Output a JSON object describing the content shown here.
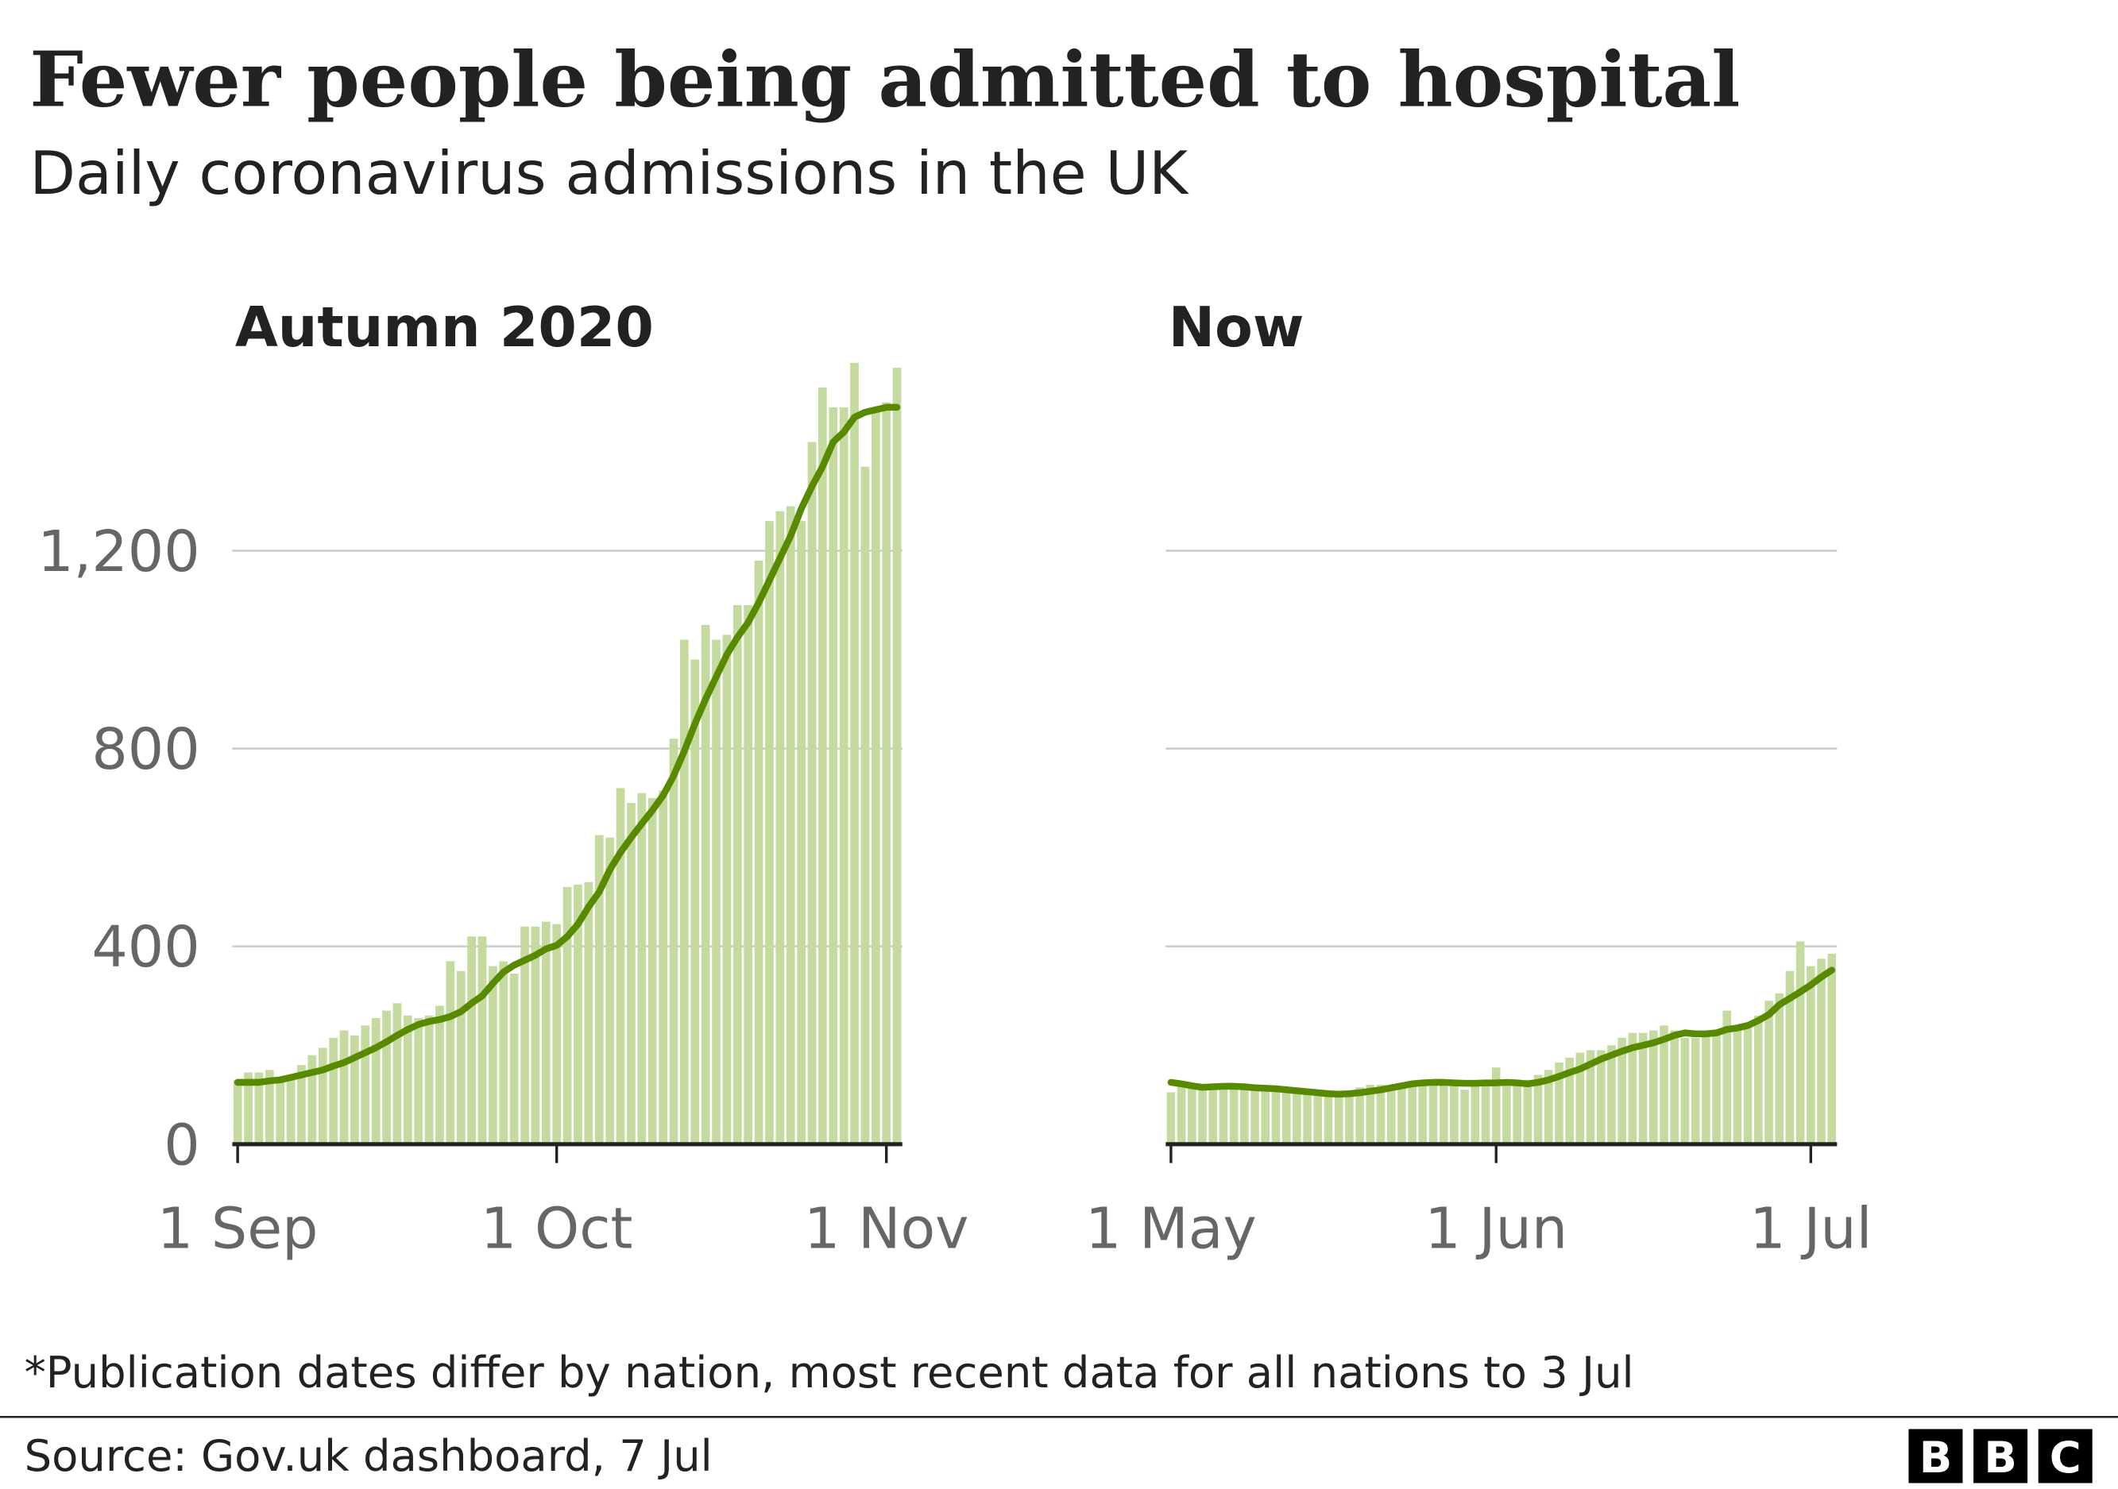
{
  "title": "Fewer people being admitted to hospital",
  "subtitle": "Daily coronavirus admissions in the UK",
  "footnote": "*Publication dates differ by nation, most recent data for all nations to 3 Jul",
  "source": "Source: Gov.uk dashboard, 7 Jul",
  "logo": [
    "B",
    "B",
    "C"
  ],
  "chart_data": [
    {
      "type": "bar",
      "title": "Autumn 2020",
      "categories": [
        "1 Sep",
        null,
        null,
        null,
        null,
        null,
        null,
        null,
        null,
        null,
        null,
        null,
        null,
        null,
        null,
        null,
        null,
        null,
        null,
        null,
        null,
        null,
        null,
        null,
        null,
        null,
        null,
        null,
        null,
        null,
        "1 Oct",
        null,
        null,
        null,
        null,
        null,
        null,
        null,
        null,
        null,
        null,
        null,
        null,
        null,
        null,
        null,
        null,
        null,
        null,
        null,
        null,
        null,
        null,
        null,
        null,
        null,
        null,
        null,
        null,
        null,
        null,
        "1 Nov",
        null
      ],
      "ylim": [
        0,
        1600
      ],
      "yticks": [
        0,
        400,
        800,
        {
          "value": 1200,
          "label": "1,200"
        }
      ],
      "tick_labels": true,
      "grid": true,
      "series": [
        {
          "type": "bar",
          "color": "#c4da9e",
          "values": [
            130,
            145,
            145,
            150,
            130,
            140,
            160,
            180,
            195,
            215,
            230,
            220,
            240,
            255,
            270,
            285,
            260,
            255,
            260,
            280,
            370,
            350,
            420,
            420,
            360,
            370,
            345,
            440,
            440,
            450,
            445,
            520,
            525,
            530,
            625,
            620,
            720,
            690,
            710,
            700,
            715,
            820,
            1020,
            980,
            1050,
            1020,
            1030,
            1090,
            1090,
            1180,
            1260,
            1280,
            1290,
            1260,
            1420,
            1530,
            1490,
            1490,
            1580,
            1370,
            1480,
            1500,
            1570
          ]
        },
        {
          "type": "line",
          "color": "#588a00",
          "values": [
            125,
            125,
            125,
            128,
            130,
            135,
            140,
            145,
            150,
            158,
            165,
            175,
            185,
            195,
            207,
            220,
            232,
            242,
            248,
            252,
            258,
            268,
            285,
            300,
            325,
            348,
            362,
            372,
            382,
            395,
            402,
            420,
            445,
            480,
            510,
            555,
            590,
            620,
            648,
            675,
            705,
            745,
            795,
            850,
            900,
            945,
            990,
            1025,
            1055,
            1095,
            1140,
            1185,
            1230,
            1285,
            1330,
            1370,
            1420,
            1440,
            1470,
            1480,
            1485,
            1490,
            1490
          ]
        }
      ]
    },
    {
      "type": "bar",
      "title": "Now",
      "categories": [
        "1 May",
        null,
        null,
        null,
        null,
        null,
        null,
        null,
        null,
        null,
        null,
        null,
        null,
        null,
        null,
        null,
        null,
        null,
        null,
        null,
        null,
        null,
        null,
        null,
        null,
        null,
        null,
        null,
        null,
        null,
        null,
        "1 Jun",
        null,
        null,
        null,
        null,
        null,
        null,
        null,
        null,
        null,
        null,
        null,
        null,
        null,
        null,
        null,
        null,
        null,
        null,
        null,
        null,
        null,
        null,
        null,
        null,
        null,
        null,
        null,
        null,
        null,
        "1 Jul",
        null,
        null
      ],
      "ylim": [
        0,
        1600
      ],
      "yticks": [
        0,
        400,
        800,
        1200
      ],
      "tick_labels": false,
      "grid": true,
      "series": [
        {
          "type": "bar",
          "color": "#c4da9e",
          "values": [
            105,
            125,
            120,
            110,
            115,
            120,
            118,
            120,
            115,
            110,
            115,
            112,
            110,
            108,
            105,
            100,
            95,
            105,
            115,
            120,
            120,
            115,
            120,
            125,
            130,
            128,
            125,
            130,
            110,
            125,
            120,
            155,
            130,
            130,
            130,
            140,
            150,
            165,
            175,
            185,
            190,
            190,
            200,
            215,
            225,
            225,
            230,
            240,
            230,
            215,
            215,
            225,
            225,
            270,
            235,
            240,
            260,
            290,
            305,
            350,
            410,
            360,
            375,
            385
          ]
        },
        {
          "type": "line",
          "color": "#588a00",
          "values": [
            125,
            122,
            118,
            115,
            116,
            117,
            117,
            116,
            114,
            113,
            112,
            110,
            108,
            106,
            104,
            102,
            101,
            102,
            104,
            107,
            110,
            114,
            118,
            122,
            124,
            125,
            125,
            124,
            123,
            123,
            124,
            124,
            125,
            124,
            122,
            125,
            130,
            137,
            145,
            152,
            162,
            172,
            180,
            188,
            195,
            200,
            205,
            212,
            220,
            225,
            223,
            223,
            225,
            232,
            235,
            240,
            250,
            262,
            282,
            295,
            308,
            322,
            338,
            352
          ]
        }
      ]
    }
  ]
}
